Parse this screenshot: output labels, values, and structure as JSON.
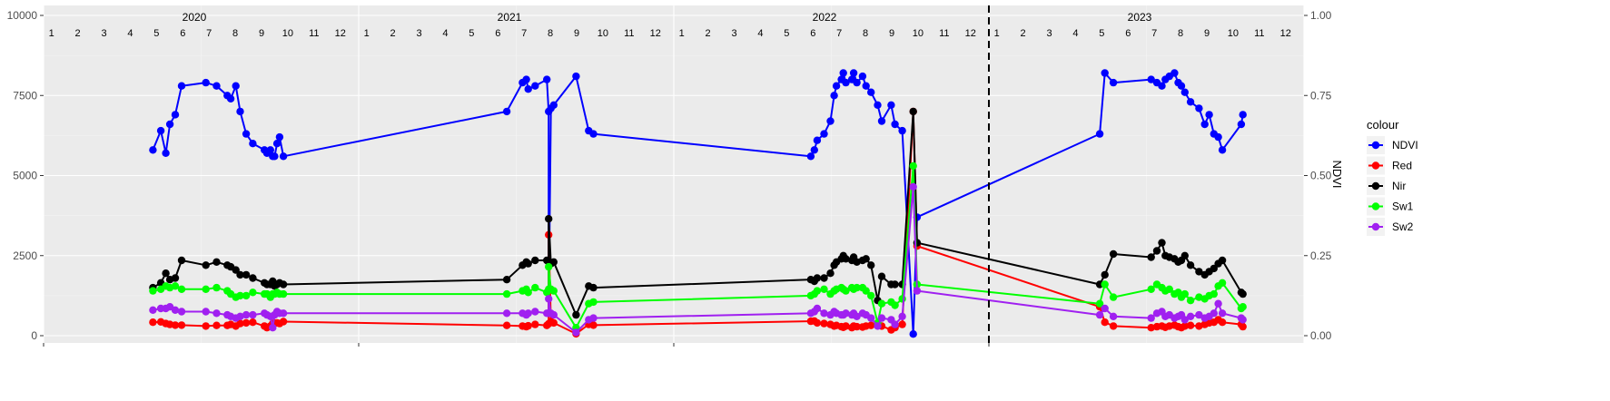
{
  "chart_data": {
    "type": "line",
    "xlabel": "",
    "ylabel": "",
    "y2label": "NDVI",
    "ylim": [
      0,
      10000
    ],
    "y2lim": [
      0,
      1
    ],
    "yticks": [
      0,
      2500,
      5000,
      7500,
      10000
    ],
    "y2ticks": [
      "0.00",
      "0.25",
      "0.50",
      "0.75",
      "1.00"
    ],
    "xlim": [
      2020.0,
      2024.0
    ],
    "grid": true,
    "years": [
      "2020",
      "2021",
      "2022",
      "2023"
    ],
    "months": [
      "1",
      "2",
      "3",
      "4",
      "5",
      "6",
      "7",
      "8",
      "9",
      "10",
      "11",
      "12"
    ],
    "vline_x": 2023.0,
    "legend": {
      "title": "colour",
      "position": "right"
    },
    "series": [
      {
        "name": "NDVI",
        "color": "#0000ff",
        "axis": "right",
        "x": [
          2020.347,
          2020.372,
          2020.388,
          2020.401,
          2020.418,
          2020.438,
          2020.515,
          2020.549,
          2020.583,
          2020.594,
          2020.61,
          2020.624,
          2020.643,
          2020.664,
          2020.701,
          2020.709,
          2020.72,
          2020.727,
          2020.733,
          2020.741,
          2020.749,
          2020.761,
          2021.47,
          2021.52,
          2021.532,
          2021.538,
          2021.56,
          2021.597,
          2021.603,
          2021.603,
          2021.61,
          2021.619,
          2021.69,
          2021.73,
          2021.745,
          2022.435,
          2022.446,
          2022.455,
          2022.477,
          2022.497,
          2022.509,
          2022.516,
          2022.532,
          2022.538,
          2022.546,
          2022.565,
          2022.571,
          2022.581,
          2022.599,
          2022.61,
          2022.626,
          2022.647,
          2022.66,
          2022.69,
          2022.702,
          2022.725,
          2022.76,
          2022.772,
          2023.352,
          2023.368,
          2023.395,
          2023.515,
          2023.533,
          2023.549,
          2023.56,
          2023.573,
          2023.589,
          2023.601,
          2023.611,
          2023.622,
          2023.64,
          2023.667,
          2023.685,
          2023.699,
          2023.714,
          2023.728,
          2023.741,
          2023.801,
          2023.806
        ],
        "y": [
          0.58,
          0.64,
          0.57,
          0.66,
          0.69,
          0.78,
          0.79,
          0.78,
          0.75,
          0.74,
          0.78,
          0.7,
          0.63,
          0.6,
          0.58,
          0.57,
          0.58,
          0.56,
          0.56,
          0.6,
          0.62,
          0.56,
          0.7,
          0.79,
          0.8,
          0.77,
          0.78,
          0.8,
          0.7,
          0.07,
          0.71,
          0.72,
          0.81,
          0.64,
          0.63,
          0.56,
          0.58,
          0.61,
          0.63,
          0.67,
          0.75,
          0.78,
          0.8,
          0.82,
          0.79,
          0.8,
          0.82,
          0.79,
          0.81,
          0.78,
          0.76,
          0.72,
          0.67,
          0.72,
          0.66,
          0.64,
          0.005,
          0.37,
          0.63,
          0.82,
          0.79,
          0.8,
          0.79,
          0.78,
          0.8,
          0.81,
          0.82,
          0.79,
          0.78,
          0.76,
          0.73,
          0.71,
          0.66,
          0.69,
          0.63,
          0.62,
          0.58,
          0.66,
          0.69
        ]
      },
      {
        "name": "Red",
        "color": "#ff0000",
        "axis": "left",
        "x": [
          2020.347,
          2020.372,
          2020.388,
          2020.401,
          2020.418,
          2020.438,
          2020.515,
          2020.549,
          2020.583,
          2020.594,
          2020.61,
          2020.624,
          2020.643,
          2020.664,
          2020.701,
          2020.709,
          2020.72,
          2020.727,
          2020.733,
          2020.741,
          2020.749,
          2020.761,
          2021.47,
          2021.52,
          2021.532,
          2021.538,
          2021.56,
          2021.597,
          2021.603,
          2021.603,
          2021.61,
          2021.619,
          2021.69,
          2021.73,
          2021.745,
          2022.435,
          2022.446,
          2022.455,
          2022.477,
          2022.497,
          2022.509,
          2022.516,
          2022.532,
          2022.538,
          2022.546,
          2022.565,
          2022.571,
          2022.581,
          2022.599,
          2022.61,
          2022.626,
          2022.647,
          2022.66,
          2022.69,
          2022.702,
          2022.725,
          2022.76,
          2022.772,
          2023.352,
          2023.368,
          2023.395,
          2023.515,
          2023.533,
          2023.549,
          2023.56,
          2023.573,
          2023.589,
          2023.601,
          2023.611,
          2023.622,
          2023.64,
          2023.667,
          2023.685,
          2023.699,
          2023.714,
          2023.728,
          2023.741,
          2023.801,
          2023.806
        ],
        "y": [
          420,
          430,
          380,
          350,
          330,
          330,
          300,
          320,
          320,
          350,
          300,
          380,
          400,
          420,
          300,
          250,
          300,
          380,
          400,
          400,
          380,
          440,
          320,
          300,
          280,
          310,
          350,
          320,
          370,
          3150,
          440,
          400,
          60,
          350,
          330,
          450,
          460,
          400,
          380,
          350,
          300,
          320,
          280,
          260,
          300,
          250,
          300,
          280,
          270,
          300,
          320,
          330,
          300,
          180,
          250,
          350,
          7000,
          2800,
          900,
          420,
          300,
          250,
          280,
          300,
          260,
          300,
          330,
          280,
          250,
          300,
          320,
          300,
          350,
          400,
          420,
          500,
          420,
          350,
          280
        ]
      },
      {
        "name": "Nir",
        "color": "#000000",
        "axis": "left",
        "x": [
          2020.347,
          2020.372,
          2020.388,
          2020.401,
          2020.418,
          2020.438,
          2020.515,
          2020.549,
          2020.583,
          2020.594,
          2020.61,
          2020.624,
          2020.643,
          2020.664,
          2020.701,
          2020.709,
          2020.72,
          2020.727,
          2020.733,
          2020.741,
          2020.749,
          2020.761,
          2021.47,
          2021.52,
          2021.532,
          2021.538,
          2021.56,
          2021.597,
          2021.603,
          2021.603,
          2021.61,
          2021.619,
          2021.69,
          2021.73,
          2021.745,
          2022.435,
          2022.446,
          2022.455,
          2022.477,
          2022.497,
          2022.509,
          2022.516,
          2022.532,
          2022.538,
          2022.546,
          2022.565,
          2022.571,
          2022.581,
          2022.599,
          2022.61,
          2022.626,
          2022.647,
          2022.66,
          2022.69,
          2022.702,
          2022.725,
          2022.76,
          2022.772,
          2023.352,
          2023.368,
          2023.395,
          2023.515,
          2023.533,
          2023.549,
          2023.56,
          2023.573,
          2023.589,
          2023.601,
          2023.611,
          2023.622,
          2023.64,
          2023.667,
          2023.685,
          2023.699,
          2023.714,
          2023.728,
          2023.741,
          2023.801,
          2023.806
        ],
        "y": [
          1500,
          1650,
          1950,
          1750,
          1800,
          2350,
          2200,
          2300,
          2200,
          2150,
          2050,
          1900,
          1900,
          1800,
          1650,
          1600,
          1600,
          1700,
          1550,
          1600,
          1650,
          1600,
          1750,
          2200,
          2300,
          2250,
          2350,
          2350,
          2300,
          3650,
          2250,
          2300,
          650,
          1550,
          1500,
          1750,
          1700,
          1800,
          1800,
          1950,
          2200,
          2300,
          2400,
          2500,
          2400,
          2350,
          2450,
          2300,
          2350,
          2400,
          2200,
          1100,
          1850,
          1600,
          1600,
          1600,
          7000,
          2900,
          1600,
          1900,
          2550,
          2450,
          2650,
          2900,
          2500,
          2450,
          2400,
          2300,
          2350,
          2500,
          2200,
          2000,
          1900,
          2000,
          2100,
          2250,
          2350,
          1350,
          1300
        ]
      },
      {
        "name": "Sw1",
        "color": "#00ff00",
        "axis": "left",
        "x": [
          2020.347,
          2020.372,
          2020.388,
          2020.401,
          2020.418,
          2020.438,
          2020.515,
          2020.549,
          2020.583,
          2020.594,
          2020.61,
          2020.624,
          2020.643,
          2020.664,
          2020.701,
          2020.709,
          2020.72,
          2020.727,
          2020.733,
          2020.741,
          2020.749,
          2020.761,
          2021.47,
          2021.52,
          2021.532,
          2021.538,
          2021.56,
          2021.597,
          2021.603,
          2021.603,
          2021.61,
          2021.619,
          2021.69,
          2021.73,
          2021.745,
          2022.435,
          2022.446,
          2022.455,
          2022.477,
          2022.497,
          2022.509,
          2022.516,
          2022.532,
          2022.538,
          2022.546,
          2022.565,
          2022.571,
          2022.581,
          2022.599,
          2022.61,
          2022.626,
          2022.647,
          2022.66,
          2022.69,
          2022.702,
          2022.725,
          2022.76,
          2022.772,
          2023.352,
          2023.368,
          2023.395,
          2023.515,
          2023.533,
          2023.549,
          2023.56,
          2023.573,
          2023.589,
          2023.601,
          2023.611,
          2023.622,
          2023.64,
          2023.667,
          2023.685,
          2023.699,
          2023.714,
          2023.728,
          2023.741,
          2023.801,
          2023.806
        ],
        "y": [
          1400,
          1450,
          1550,
          1500,
          1550,
          1450,
          1450,
          1500,
          1400,
          1300,
          1200,
          1250,
          1250,
          1350,
          1300,
          1300,
          1200,
          1300,
          1300,
          1350,
          1300,
          1300,
          1300,
          1400,
          1450,
          1350,
          1500,
          1350,
          1450,
          2150,
          1450,
          1400,
          250,
          1000,
          1050,
          1250,
          1300,
          1400,
          1450,
          1300,
          1400,
          1450,
          1500,
          1450,
          1400,
          1500,
          1450,
          1500,
          1500,
          1400,
          1250,
          400,
          1000,
          1050,
          950,
          1150,
          5300,
          1600,
          1000,
          1600,
          1200,
          1450,
          1600,
          1500,
          1400,
          1450,
          1300,
          1350,
          1200,
          1300,
          1100,
          1200,
          1150,
          1250,
          1300,
          1550,
          1650,
          850,
          900
        ]
      },
      {
        "name": "Sw2",
        "color": "#a020f0",
        "axis": "left",
        "x": [
          2020.347,
          2020.372,
          2020.388,
          2020.401,
          2020.418,
          2020.438,
          2020.515,
          2020.549,
          2020.583,
          2020.594,
          2020.61,
          2020.624,
          2020.643,
          2020.664,
          2020.701,
          2020.709,
          2020.72,
          2020.727,
          2020.733,
          2020.741,
          2020.749,
          2020.761,
          2021.47,
          2021.52,
          2021.532,
          2021.538,
          2021.56,
          2021.597,
          2021.603,
          2021.603,
          2021.61,
          2021.619,
          2021.69,
          2021.73,
          2021.745,
          2022.435,
          2022.446,
          2022.455,
          2022.477,
          2022.497,
          2022.509,
          2022.516,
          2022.532,
          2022.538,
          2022.546,
          2022.565,
          2022.571,
          2022.581,
          2022.599,
          2022.61,
          2022.626,
          2022.647,
          2022.66,
          2022.69,
          2022.702,
          2022.725,
          2022.76,
          2022.772,
          2023.352,
          2023.368,
          2023.395,
          2023.515,
          2023.533,
          2023.549,
          2023.56,
          2023.573,
          2023.589,
          2023.601,
          2023.611,
          2023.622,
          2023.64,
          2023.667,
          2023.685,
          2023.699,
          2023.714,
          2023.728,
          2023.741,
          2023.801,
          2023.806
        ],
        "y": [
          800,
          850,
          850,
          900,
          800,
          750,
          750,
          700,
          650,
          600,
          550,
          600,
          650,
          650,
          700,
          650,
          600,
          250,
          650,
          750,
          700,
          700,
          700,
          700,
          650,
          700,
          750,
          700,
          700,
          1150,
          700,
          650,
          100,
          500,
          550,
          700,
          750,
          850,
          700,
          650,
          750,
          700,
          650,
          650,
          700,
          650,
          700,
          600,
          700,
          650,
          550,
          300,
          550,
          500,
          350,
          600,
          4650,
          1400,
          650,
          850,
          600,
          550,
          700,
          750,
          600,
          650,
          550,
          600,
          650,
          500,
          600,
          650,
          550,
          600,
          700,
          1000,
          700,
          550,
          500
        ]
      }
    ]
  }
}
